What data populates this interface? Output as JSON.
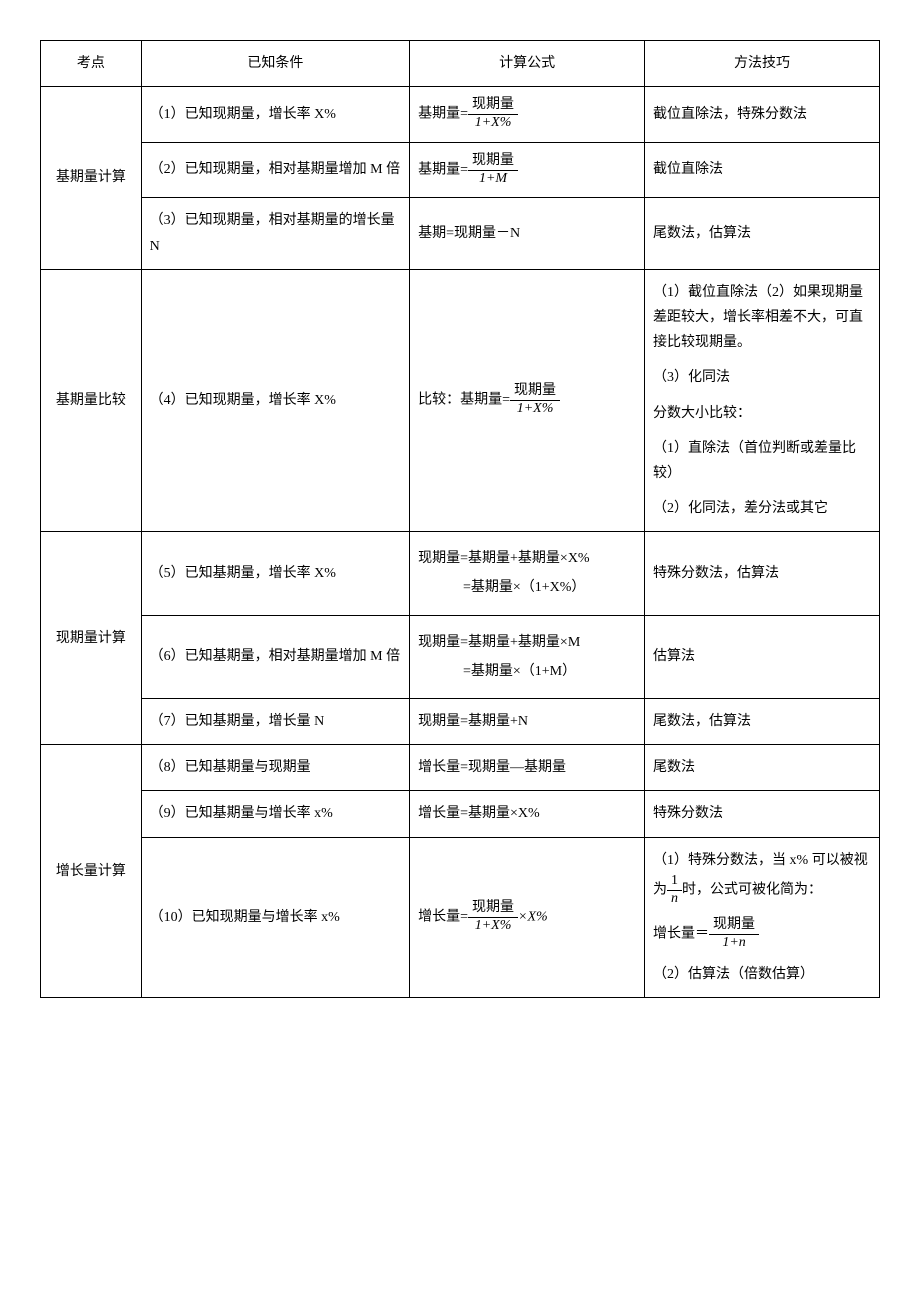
{
  "table": {
    "headers": {
      "topic": "考点",
      "condition": "已知条件",
      "formula": "计算公式",
      "method": "方法技巧"
    },
    "sections": [
      {
        "topic": "基期量计算",
        "rows": [
          {
            "condition": "（1）已知现期量，增长率 X%",
            "formula_prefix": "基期量=",
            "frac": {
              "num": "现期量",
              "den": "1+X%"
            },
            "method": "截位直除法，特殊分数法"
          },
          {
            "condition": "（2）已知现期量，相对基期量增加 M 倍",
            "formula_prefix": "基期量=",
            "frac": {
              "num": "现期量",
              "den": "1+M"
            },
            "method": "截位直除法"
          },
          {
            "condition": "（3）已知现期量，相对基期量的增长量 N",
            "formula_text": "基期=现期量－N",
            "method": "尾数法，估算法"
          }
        ]
      },
      {
        "topic": "基期量比较",
        "rows": [
          {
            "condition": "（4）已知现期量，增长率 X%",
            "formula_prefix": "比较：基期量=",
            "frac": {
              "num": "现期量",
              "den": "1+X%"
            },
            "method_lines": [
              "（1）截位直除法（2）如果现期量差距较大，增长率相差不大，可直接比较现期量。",
              "（3）化同法",
              "分数大小比较：",
              "（1）直除法（首位判断或差量比较）",
              "（2）化同法，差分法或其它"
            ]
          }
        ]
      },
      {
        "topic": "现期量计算",
        "rows": [
          {
            "condition": "（5）已知基期量，增长率 X%",
            "formula_lines": [
              "现期量=基期量+基期量×X%",
              "=基期量×（1+X%）"
            ],
            "method": "特殊分数法，估算法"
          },
          {
            "condition": "（6）已知基期量，相对基期量增加 M 倍",
            "formula_lines": [
              "现期量=基期量+基期量×M",
              "=基期量×（1+M）"
            ],
            "method": "估算法"
          },
          {
            "condition": "（7）已知基期量，增长量 N",
            "formula_text": "现期量=基期量+N",
            "method": "尾数法，估算法"
          }
        ]
      },
      {
        "topic": "增长量计算",
        "rows": [
          {
            "condition": "（8）已知基期量与现期量",
            "formula_text": "增长量=现期量—基期量",
            "method": "尾数法"
          },
          {
            "condition": "（9）已知基期量与增长率 x%",
            "formula_text": "增长量=基期量×X%",
            "method": "特殊分数法"
          },
          {
            "condition": "（10）已知现期量与增长率 x%",
            "formula_prefix": "增长量=",
            "frac": {
              "num": "现期量",
              "den": "1+X%"
            },
            "formula_suffix": "×X%",
            "method_complex": {
              "p1_a": "（1）特殊分数法，当 x% 可以被视为",
              "p1_frac": {
                "num": "1",
                "den": "n"
              },
              "p1_b": "时，公式可被化简为：",
              "p2_a": "增长量＝",
              "p2_frac": {
                "num": "现期量",
                "den": "1+n"
              },
              "p3": "（2）估算法（倍数估算）"
            }
          }
        ]
      }
    ]
  },
  "italic_vars": "X%"
}
